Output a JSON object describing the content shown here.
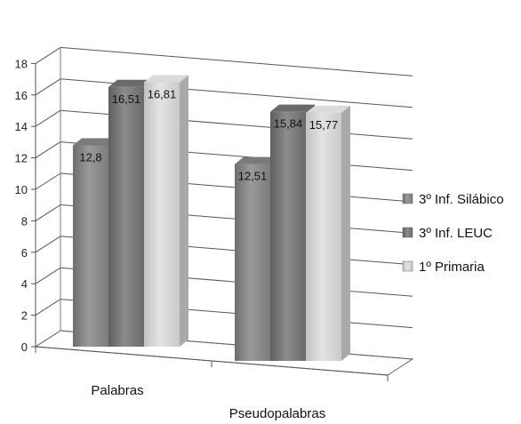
{
  "chart_data": {
    "type": "bar",
    "categories": [
      "Palabras",
      "Pseudopalabras"
    ],
    "series": [
      {
        "name": "3º Inf. Silábico",
        "values": [
          12.8,
          12.51
        ],
        "labels": [
          "12,8",
          "12,51"
        ],
        "color": "#8a8a8a"
      },
      {
        "name": "3º Inf. LEUC",
        "values": [
          16.51,
          15.84
        ],
        "labels": [
          "16,51",
          "15,84"
        ],
        "color": "#7a7a7a"
      },
      {
        "name": "1º Primaria",
        "values": [
          16.81,
          15.77
        ],
        "labels": [
          "16,81",
          "15,77"
        ],
        "color": "#cfcfcf"
      }
    ],
    "ylim": [
      0,
      18
    ],
    "yticks": [
      0,
      2,
      4,
      6,
      8,
      10,
      12,
      14,
      16,
      18
    ],
    "grid": true,
    "legend": "right",
    "three_d": true
  }
}
